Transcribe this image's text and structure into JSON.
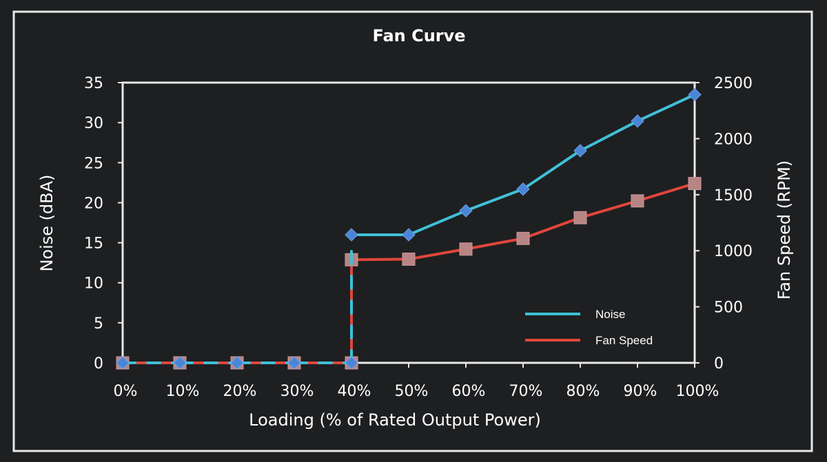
{
  "chart_data": {
    "type": "line",
    "title": "Fan Curve",
    "xlabel": "Loading (% of Rated Output Power)",
    "ylabel_left": "Noise (dBA)",
    "ylabel_right": "Fan Speed (RPM)",
    "categories": [
      "0%",
      "10%",
      "20%",
      "30%",
      "40%",
      "40%",
      "50%",
      "60%",
      "70%",
      "80%",
      "90%",
      "100%"
    ],
    "x_ticks": [
      "0%",
      "10%",
      "20%",
      "30%",
      "40%",
      "50%",
      "60%",
      "70%",
      "80%",
      "90%",
      "100%"
    ],
    "y_left_ticks": [
      "0",
      "5",
      "10",
      "15",
      "20",
      "25",
      "30",
      "35"
    ],
    "y_right_ticks": [
      "0",
      "500",
      "1000",
      "1500",
      "2000",
      "2500"
    ],
    "ylim_left": [
      0,
      35
    ],
    "ylim_right": [
      0,
      2500
    ],
    "legend_position": "bottom-right",
    "grid": false,
    "series": [
      {
        "name": "Noise",
        "axis": "left",
        "color": "#3fc0d6",
        "marker_color": "#4a86d8",
        "marker": "diamond",
        "x": [
          0,
          10,
          20,
          30,
          40,
          40,
          50,
          60,
          70,
          80,
          90,
          100
        ],
        "values": [
          0,
          0,
          0,
          0,
          0,
          16,
          16,
          19,
          21.7,
          26.5,
          30.2,
          33.5
        ]
      },
      {
        "name": "Fan Speed",
        "axis": "right",
        "color": "#e0463c",
        "marker_color": "#b88484",
        "marker": "square",
        "x": [
          0,
          10,
          20,
          30,
          40,
          40,
          50,
          60,
          70,
          80,
          90,
          100
        ],
        "values": [
          0,
          0,
          0,
          0,
          0,
          920,
          925,
          1015,
          1110,
          1295,
          1445,
          1600
        ]
      }
    ]
  }
}
